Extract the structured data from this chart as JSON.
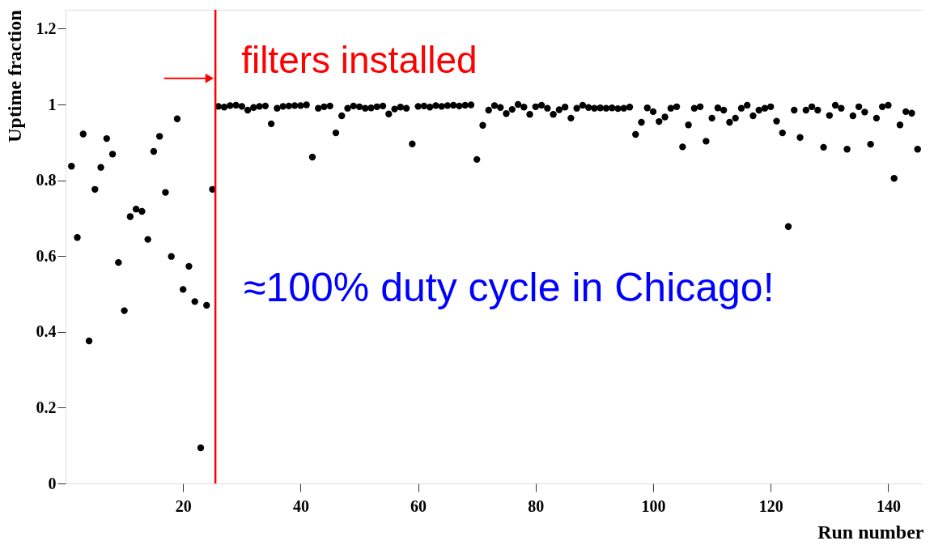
{
  "chart_data": {
    "type": "scatter",
    "xlabel": "Run number",
    "ylabel": "Uptime fraction",
    "x": [
      1,
      2,
      3,
      4,
      5,
      6,
      7,
      8,
      9,
      10,
      11,
      12,
      13,
      14,
      15,
      16,
      17,
      18,
      19,
      20,
      21,
      22,
      23,
      24,
      25,
      26,
      27,
      28,
      29,
      30,
      31,
      32,
      33,
      34,
      35,
      36,
      37,
      38,
      39,
      40,
      41,
      42,
      43,
      44,
      45,
      46,
      47,
      48,
      49,
      50,
      51,
      52,
      53,
      54,
      55,
      56,
      57,
      58,
      59,
      60,
      61,
      62,
      63,
      64,
      65,
      66,
      67,
      68,
      69,
      70,
      71,
      72,
      73,
      74,
      75,
      76,
      77,
      78,
      79,
      80,
      81,
      82,
      83,
      84,
      85,
      86,
      87,
      88,
      89,
      90,
      91,
      92,
      93,
      94,
      95,
      96,
      97,
      98,
      99,
      100,
      101,
      102,
      103,
      104,
      105,
      106,
      107,
      108,
      109,
      110,
      111,
      112,
      113,
      114,
      115,
      116,
      117,
      118,
      119,
      120,
      121,
      122,
      123,
      124,
      125,
      126,
      127,
      128,
      129,
      130,
      131,
      132,
      133,
      134,
      135,
      136,
      137,
      138,
      139,
      140,
      141,
      142,
      143,
      144,
      145
    ],
    "series": [
      {
        "color": "#000000",
        "values": [
          0.837,
          0.649,
          0.922,
          0.376,
          0.776,
          0.834,
          0.91,
          0.869,
          0.583,
          0.456,
          0.704,
          0.724,
          0.718,
          0.644,
          0.876,
          0.916,
          0.768,
          0.599,
          0.962,
          0.512,
          0.573,
          0.48,
          0.094,
          0.47,
          0.776,
          0.995,
          0.993,
          0.997,
          0.998,
          0.995,
          0.985,
          0.992,
          0.995,
          0.996,
          0.949,
          0.99,
          0.995,
          0.996,
          0.997,
          0.997,
          0.999,
          0.861,
          0.99,
          0.994,
          0.996,
          0.925,
          0.97,
          0.99,
          0.996,
          0.994,
          0.99,
          0.991,
          0.994,
          0.996,
          0.975,
          0.988,
          0.993,
          0.99,
          0.896,
          0.995,
          0.996,
          0.993,
          0.997,
          0.995,
          0.997,
          0.998,
          0.996,
          0.998,
          0.999,
          0.855,
          0.945,
          0.985,
          0.997,
          0.992,
          0.976,
          0.987,
          1.0,
          0.993,
          0.974,
          0.994,
          0.998,
          0.99,
          0.974,
          0.986,
          0.993,
          0.964,
          0.99,
          0.998,
          0.992,
          0.99,
          0.991,
          0.99,
          0.991,
          0.989,
          0.99,
          0.993,
          0.921,
          0.953,
          0.991,
          0.981,
          0.955,
          0.967,
          0.99,
          0.994,
          0.888,
          0.946,
          0.99,
          0.994,
          0.903,
          0.964,
          0.991,
          0.985,
          0.953,
          0.964,
          0.99,
          0.998,
          0.97,
          0.985,
          0.99,
          0.994,
          0.956,
          0.925,
          0.678,
          0.985,
          0.913,
          0.985,
          0.994,
          0.985,
          0.887,
          0.971,
          0.998,
          0.99,
          0.882,
          0.97,
          0.994,
          0.98,
          0.895,
          0.964,
          0.994,
          0.998,
          0.805,
          0.946,
          0.981,
          0.977,
          0.882
        ]
      }
    ],
    "xlim": [
      0,
      146
    ],
    "xticks": [
      20,
      40,
      60,
      80,
      100,
      120,
      140
    ],
    "ylim": [
      0,
      1.25
    ],
    "yticks": [
      0,
      0.2,
      0.4,
      0.6,
      0.8,
      1,
      1.2
    ],
    "marker": "circle",
    "grid": false,
    "ref_lines": [
      {
        "axis": "x",
        "value": 25.5,
        "label": "filters installed",
        "color": "#ff0000"
      }
    ],
    "annotations": [
      "≈100% duty cycle in Chicago!"
    ]
  }
}
